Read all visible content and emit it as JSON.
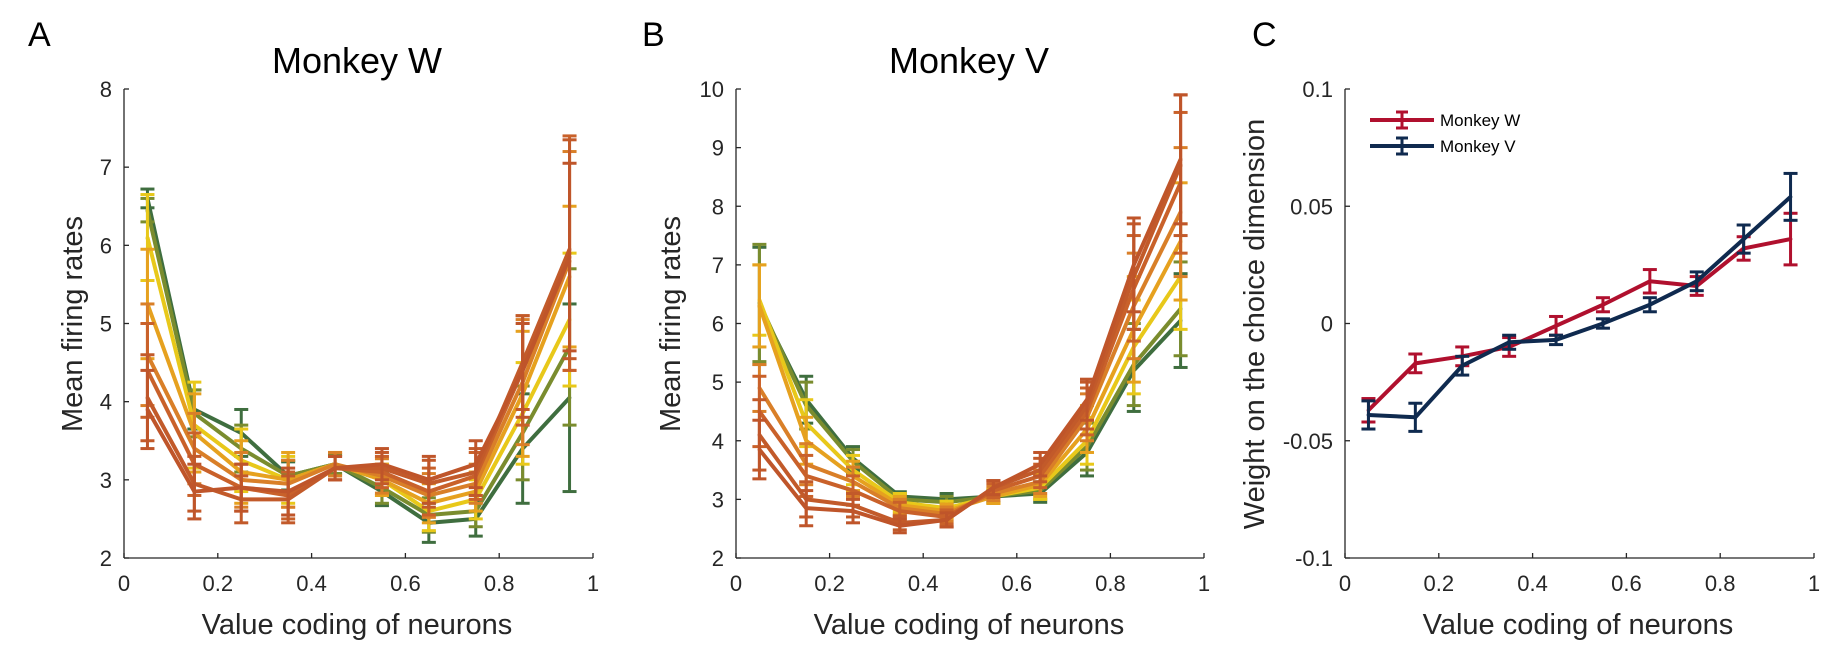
{
  "figure": {
    "panels": [
      {
        "letter": "A",
        "title": "Monkey W"
      },
      {
        "letter": "B",
        "title": "Monkey V"
      },
      {
        "letter": "C",
        "title": ""
      }
    ]
  },
  "chart_data": [
    {
      "type": "line",
      "panel": "A",
      "title": "Monkey W",
      "xlabel": "Value coding of neurons",
      "ylabel": "Mean firing rates",
      "xlim": [
        0,
        1
      ],
      "ylim": [
        2,
        8
      ],
      "xticks": [
        "0",
        "0.2",
        "0.4",
        "0.6",
        "0.8",
        "1"
      ],
      "yticks": [
        "2",
        "3",
        "4",
        "5",
        "6",
        "7",
        "8"
      ],
      "x": [
        0.05,
        0.15,
        0.25,
        0.35,
        0.45,
        0.55,
        0.65,
        0.75,
        0.85,
        0.95
      ],
      "grid": false,
      "series": [
        {
          "color": "#3f6e3f",
          "values": [
            6.6,
            3.9,
            3.6,
            3.05,
            3.2,
            2.85,
            2.45,
            2.5,
            3.4,
            4.05
          ],
          "errors": [
            0.12,
            0.25,
            0.3,
            0.18,
            0.12,
            0.18,
            0.25,
            0.22,
            0.7,
            1.2
          ]
        },
        {
          "color": "#7a8c2e",
          "values": [
            6.45,
            3.85,
            3.4,
            3.05,
            3.2,
            2.9,
            2.55,
            2.6,
            3.6,
            4.7
          ],
          "errors": [
            0.15,
            0.3,
            0.3,
            0.2,
            0.12,
            0.2,
            0.22,
            0.2,
            0.6,
            1.0
          ]
        },
        {
          "color": "#e8c81a",
          "values": [
            6.1,
            3.7,
            3.25,
            3.0,
            3.2,
            3.0,
            2.6,
            2.75,
            3.85,
            5.05
          ],
          "errors": [
            0.55,
            0.55,
            0.4,
            0.3,
            0.15,
            0.2,
            0.25,
            0.25,
            0.65,
            0.85
          ]
        },
        {
          "color": "#e6a11f",
          "values": [
            5.25,
            3.6,
            3.1,
            3.0,
            3.2,
            3.0,
            2.7,
            2.85,
            4.1,
            5.6
          ],
          "errors": [
            0.7,
            0.5,
            0.4,
            0.35,
            0.15,
            0.2,
            0.25,
            0.25,
            0.8,
            0.9
          ]
        },
        {
          "color": "#d97f28",
          "values": [
            4.6,
            3.4,
            3.0,
            2.95,
            3.2,
            3.05,
            2.8,
            2.95,
            4.25,
            5.8
          ],
          "errors": [
            0.65,
            0.45,
            0.35,
            0.3,
            0.15,
            0.22,
            0.28,
            0.25,
            0.8,
            1.4
          ]
        },
        {
          "color": "#c9612a",
          "values": [
            4.4,
            3.2,
            2.9,
            2.8,
            3.15,
            3.1,
            2.85,
            3.05,
            4.4,
            5.9
          ],
          "errors": [
            0.6,
            0.4,
            0.3,
            0.3,
            0.15,
            0.2,
            0.3,
            0.3,
            0.7,
            1.5
          ]
        },
        {
          "color": "#c25a2a",
          "values": [
            4.05,
            2.95,
            2.75,
            2.75,
            3.15,
            3.15,
            2.95,
            3.1,
            4.5,
            5.95
          ],
          "errors": [
            0.55,
            0.35,
            0.3,
            0.3,
            0.15,
            0.2,
            0.3,
            0.3,
            0.6,
            1.4
          ]
        },
        {
          "color": "#bf552a",
          "values": [
            3.9,
            2.85,
            2.9,
            2.85,
            3.15,
            3.2,
            3.0,
            3.2,
            4.4,
            5.85
          ],
          "errors": [
            0.5,
            0.35,
            0.3,
            0.3,
            0.15,
            0.2,
            0.3,
            0.3,
            0.6,
            1.2
          ]
        }
      ]
    },
    {
      "type": "line",
      "panel": "B",
      "title": "Monkey V",
      "xlabel": "Value coding of neurons",
      "ylabel": "Mean firing rates",
      "xlim": [
        0,
        1
      ],
      "ylim": [
        2,
        10
      ],
      "xticks": [
        "0",
        "0.2",
        "0.4",
        "0.6",
        "0.8",
        "1"
      ],
      "yticks": [
        "2",
        "3",
        "4",
        "5",
        "6",
        "7",
        "8",
        "9",
        "10"
      ],
      "x": [
        0.05,
        0.15,
        0.25,
        0.35,
        0.45,
        0.55,
        0.65,
        0.75,
        0.85,
        0.95
      ],
      "grid": false,
      "series": [
        {
          "color": "#3f6e3f",
          "values": [
            6.3,
            4.7,
            3.7,
            3.05,
            3.0,
            3.05,
            3.1,
            3.8,
            5.2,
            6.05
          ],
          "errors": [
            1.0,
            0.4,
            0.2,
            0.08,
            0.1,
            0.1,
            0.15,
            0.4,
            0.7,
            0.8
          ]
        },
        {
          "color": "#7a8c2e",
          "values": [
            6.35,
            4.6,
            3.65,
            3.0,
            2.95,
            3.05,
            3.15,
            3.9,
            5.3,
            6.25
          ],
          "errors": [
            1.0,
            0.4,
            0.2,
            0.1,
            0.1,
            0.1,
            0.15,
            0.4,
            0.7,
            0.8
          ]
        },
        {
          "color": "#e8c81a",
          "values": [
            6.4,
            4.3,
            3.5,
            2.95,
            2.85,
            3.05,
            3.2,
            4.0,
            5.6,
            6.8
          ],
          "errors": [
            0.6,
            0.4,
            0.25,
            0.15,
            0.12,
            0.12,
            0.2,
            0.4,
            0.8,
            0.9
          ]
        },
        {
          "color": "#e6a11f",
          "values": [
            6.3,
            4.0,
            3.4,
            2.9,
            2.8,
            3.05,
            3.25,
            4.2,
            5.9,
            7.4
          ],
          "errors": [
            0.7,
            0.4,
            0.25,
            0.15,
            0.12,
            0.12,
            0.2,
            0.4,
            0.9,
            1.0
          ]
        },
        {
          "color": "#d97f28",
          "values": [
            4.9,
            3.6,
            3.3,
            2.85,
            2.75,
            3.1,
            3.3,
            4.4,
            6.3,
            7.9
          ],
          "errors": [
            0.4,
            0.35,
            0.25,
            0.15,
            0.12,
            0.12,
            0.2,
            0.4,
            0.9,
            1.1
          ]
        },
        {
          "color": "#c9612a",
          "values": [
            4.5,
            3.4,
            3.15,
            2.8,
            2.7,
            3.15,
            3.4,
            4.5,
            6.6,
            8.4
          ],
          "errors": [
            0.6,
            0.35,
            0.25,
            0.15,
            0.12,
            0.12,
            0.2,
            0.4,
            0.9,
            1.2
          ]
        },
        {
          "color": "#c25a2a",
          "values": [
            4.1,
            3.0,
            2.9,
            2.6,
            2.65,
            3.2,
            3.5,
            4.6,
            6.8,
            8.7
          ],
          "errors": [
            0.6,
            0.3,
            0.2,
            0.12,
            0.12,
            0.12,
            0.2,
            0.4,
            0.9,
            1.2
          ]
        },
        {
          "color": "#bf552a",
          "values": [
            3.85,
            2.85,
            2.8,
            2.55,
            2.65,
            3.2,
            3.6,
            4.7,
            7.0,
            8.8
          ],
          "errors": [
            0.5,
            0.3,
            0.2,
            0.12,
            0.12,
            0.12,
            0.2,
            0.35,
            0.8,
            1.1
          ]
        }
      ]
    },
    {
      "type": "line",
      "panel": "C",
      "title": "",
      "xlabel": "Value coding of neurons",
      "ylabel": "Weight on the choice dimension",
      "xlim": [
        0,
        1
      ],
      "ylim": [
        -0.1,
        0.1
      ],
      "xticks": [
        "0",
        "0.2",
        "0.4",
        "0.6",
        "0.8",
        "1"
      ],
      "yticks": [
        "-0.1",
        "-0.05",
        "0",
        "0.05",
        "0.1"
      ],
      "x": [
        0.05,
        0.15,
        0.25,
        0.35,
        0.45,
        0.55,
        0.65,
        0.75,
        0.85,
        0.95
      ],
      "grid": false,
      "legend": "top-left",
      "series": [
        {
          "name": "Monkey W",
          "color": "#b0102e",
          "values": [
            -0.037,
            -0.017,
            -0.014,
            -0.01,
            -0.001,
            0.008,
            0.018,
            0.016,
            0.032,
            0.036
          ],
          "errors": [
            0.005,
            0.004,
            0.004,
            0.004,
            0.004,
            0.003,
            0.005,
            0.004,
            0.005,
            0.011
          ]
        },
        {
          "name": "Monkey V",
          "color": "#0f2a4f",
          "values": [
            -0.039,
            -0.04,
            -0.018,
            -0.008,
            -0.007,
            0.0,
            0.008,
            0.018,
            0.036,
            0.054
          ],
          "errors": [
            0.006,
            0.006,
            0.004,
            0.003,
            0.002,
            0.002,
            0.003,
            0.004,
            0.006,
            0.01
          ]
        }
      ]
    }
  ]
}
